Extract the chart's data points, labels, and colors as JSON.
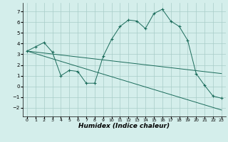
{
  "x": [
    0,
    1,
    2,
    3,
    4,
    5,
    6,
    7,
    8,
    9,
    10,
    11,
    12,
    13,
    14,
    15,
    16,
    17,
    18,
    19,
    20,
    21,
    22,
    23
  ],
  "line1": [
    3.3,
    3.7,
    4.1,
    3.2,
    1.0,
    1.5,
    1.4,
    0.3,
    0.3,
    2.8,
    4.4,
    5.6,
    6.2,
    6.1,
    5.4,
    6.8,
    7.2,
    6.1,
    5.6,
    4.3,
    1.2,
    0.1,
    -0.9,
    -1.1
  ],
  "line_upper": {
    "x0": 0,
    "y0": 3.3,
    "x1": 23,
    "y1": 1.2
  },
  "line_lower": {
    "x0": 0,
    "y0": 3.3,
    "x1": 23,
    "y1": -2.2
  },
  "line_color": "#1a6b5a",
  "bg_color": "#d4eeeb",
  "grid_color": "#a8ccc8",
  "xlabel": "Humidex (Indice chaleur)",
  "ylim": [
    -2.8,
    7.8
  ],
  "xlim": [
    -0.5,
    23.5
  ],
  "yticks": [
    -2,
    -1,
    0,
    1,
    2,
    3,
    4,
    5,
    6,
    7
  ],
  "xtick_labels": [
    "0",
    "1",
    "2",
    "3",
    "4",
    "5",
    "6",
    "7",
    "8",
    "9",
    "10",
    "11",
    "12",
    "13",
    "14",
    "15",
    "16",
    "17",
    "18",
    "19",
    "20",
    "21",
    "22",
    "23"
  ],
  "title_fontsize": 5,
  "tick_fontsize": 5,
  "xlabel_fontsize": 6.5
}
